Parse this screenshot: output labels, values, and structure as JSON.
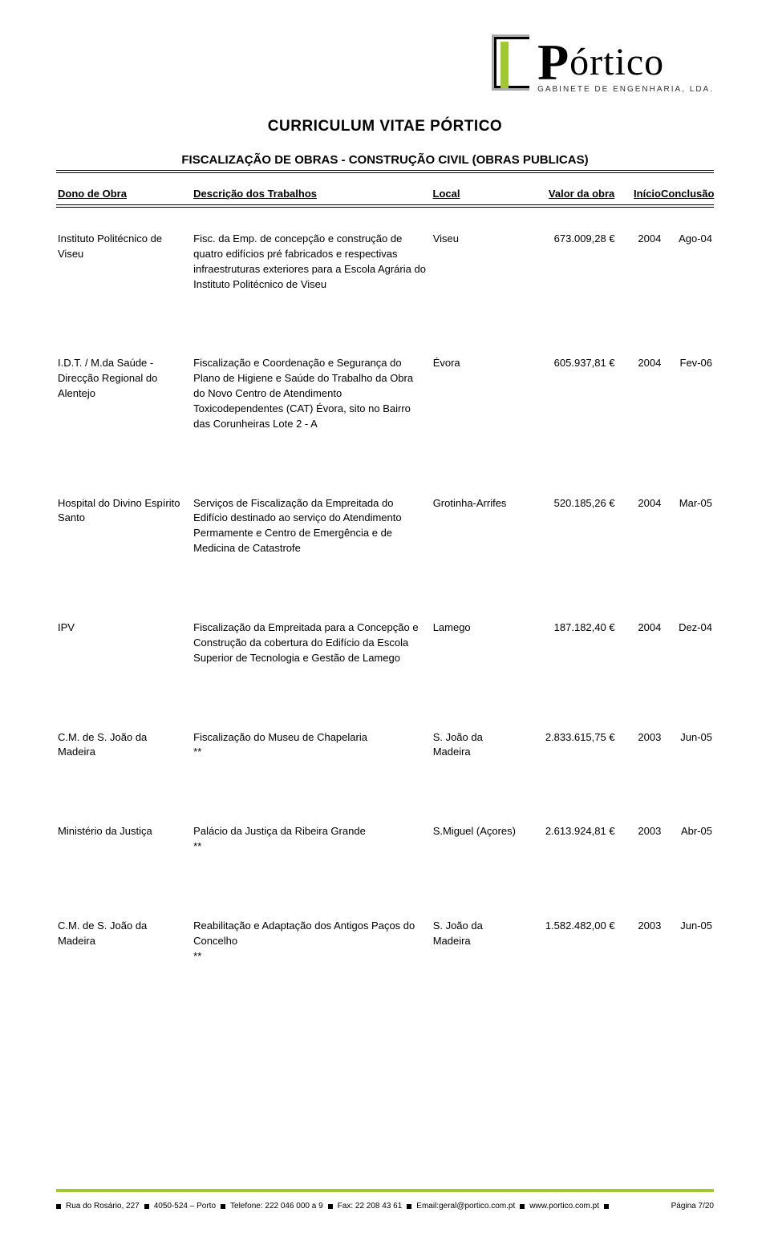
{
  "logo": {
    "word": "Pórtico",
    "subtitle": "GABINETE DE ENGENHARIA, LDA.",
    "brand_color": "#a0c830"
  },
  "title": "CURRICULUM VITAE PÓRTICO",
  "subtitle": "FISCALIZAÇÃO  DE OBRAS - CONSTRUÇÃO CIVIL (OBRAS PUBLICAS)",
  "columns": {
    "dono": "Dono de Obra",
    "desc": "Descrição dos Trabalhos",
    "local": "Local",
    "valor": "Valor da obra",
    "inicio": "Início",
    "conclusao": "Conclusão"
  },
  "rows": [
    {
      "dono": "Instituto Politécnico de Viseu",
      "desc": "Fisc. da Emp. de concepção e construção de quatro edifícios pré fabricados e respectivas infraestruturas exteriores para a Escola Agrária do Instituto Politécnico de Viseu",
      "local": "Viseu",
      "valor": "673.009,28 €",
      "inicio": "2004",
      "conclusao": "Ago-04"
    },
    {
      "dono": "I.D.T. / M.da Saúde - Direcção Regional do Alentejo",
      "desc": "Fiscalização  e Coordenação e Segurança do Plano de Higiene e Saúde do Trabalho da Obra do Novo Centro de Atendimento Toxicodependentes (CAT) Évora, sito no Bairro das Corunheiras Lote 2 - A",
      "local": "Évora",
      "valor": "605.937,81 €",
      "inicio": "2004",
      "conclusao": "Fev-06"
    },
    {
      "dono": "Hospital do Divino Espírito Santo",
      "desc": "Serviços de Fiscalização da Empreitada do Edifício destinado ao serviço do Atendimento Permamente e Centro de Emergência e de Medicina de Catastrofe",
      "local": "Grotinha-Arrifes",
      "valor": "520.185,26 €",
      "inicio": "2004",
      "conclusao": "Mar-05"
    },
    {
      "dono": "IPV",
      "desc": "Fiscalização da Empreitada para a Concepção e Construção da cobertura do Edifício da Escola Superior de Tecnologia e Gestão de Lamego",
      "local": "Lamego",
      "valor": "187.182,40 €",
      "inicio": "2004",
      "conclusao": "Dez-04"
    },
    {
      "dono": "C.M. de S. João da Madeira",
      "desc": "Fiscalização do Museu de Chapelaria\n**",
      "local": "S. João da Madeira",
      "valor": "2.833.615,75 €",
      "inicio": "2003",
      "conclusao": "Jun-05"
    },
    {
      "dono": "Ministério da Justiça",
      "desc": "Palácio da Justiça da Ribeira Grande\n**",
      "local": "S.Miguel (Açores)",
      "valor": "2.613.924,81 €",
      "inicio": "2003",
      "conclusao": "Abr-05"
    },
    {
      "dono": "C.M. de S. João da Madeira",
      "desc": "Reabilitação e Adaptação dos Antigos Paços do Concelho\n**",
      "local": "S. João da Madeira",
      "valor": "1.582.482,00 €",
      "inicio": "2003",
      "conclusao": "Jun-05"
    }
  ],
  "footer": {
    "addr": "Rua do Rosário, 227",
    "postal": "4050-524 – Porto",
    "tel": "Telefone: 222 046 000 a 9",
    "fax": "Fax: 22 208 43 61",
    "email": "Email:geral@portico.com.pt",
    "site": "www.portico.com.pt",
    "page": "Página 7/20",
    "bar_color": "#a0c830"
  }
}
